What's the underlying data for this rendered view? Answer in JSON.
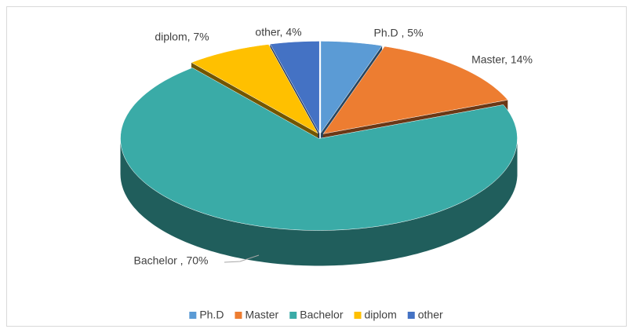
{
  "chart_data": {
    "type": "pie",
    "categories": [
      "Ph.D",
      "Master",
      "Bachelor",
      "diplom",
      "other"
    ],
    "values": [
      5,
      14,
      70,
      7,
      4
    ],
    "value_labels": [
      "Ph.D , 5%",
      "Master, 14%",
      "Bachelor , 70%",
      "diplom, 7%",
      "other, 4%"
    ],
    "colors": [
      "#5b9bd5",
      "#ed7d31",
      "#3aaba7",
      "#ffc000",
      "#4472c4"
    ],
    "legend": "bottom"
  }
}
